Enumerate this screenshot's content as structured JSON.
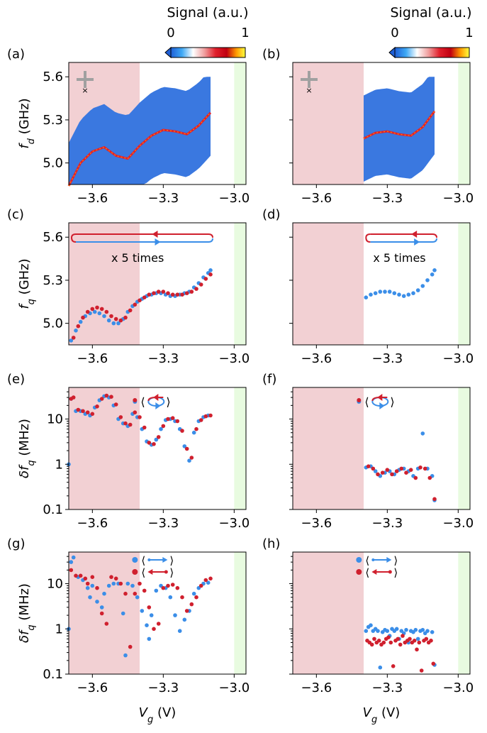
{
  "colorbar": {
    "label": "Signal (a.u.)",
    "tick_min": "0",
    "tick_max": "1",
    "colors": [
      "#1f5fd6",
      "#3fa9f5",
      "#ffffff",
      "#f0a0a0",
      "#e0202c",
      "#c00010",
      "#ff9a00",
      "#ffff40"
    ]
  },
  "colors": {
    "red_shade": "#f2d0d3",
    "green_shade": "#e8fbe0",
    "blue": "#3b8ee8",
    "red": "#d0202e",
    "map_blue": "#3a78e0"
  },
  "annotations": {
    "c_repeat": "x 5 times",
    "d_repeat": "x 5 times"
  },
  "chart_data": [
    {
      "panel": "(a)",
      "type": "heatmap",
      "xlabel": "",
      "ylabel": "f_d (GHz)",
      "ylabel_main": "f",
      "ylabel_sub": "d",
      "ylabel_unit": " (GHz)",
      "xlim": [
        -3.7,
        -2.95
      ],
      "ylim": [
        4.85,
        5.7
      ],
      "xticks": [
        "−3.6",
        "−3.3",
        "−3.0"
      ],
      "yticks": [
        "5.0",
        "5.3",
        "5.6"
      ],
      "shade_red": [
        -3.7,
        -3.4
      ],
      "shade_green": [
        -3.0,
        -2.95
      ],
      "map_x_range": [
        -3.7,
        -3.1
      ],
      "resonance": {
        "x": [
          -3.7,
          -3.65,
          -3.6,
          -3.55,
          -3.5,
          -3.45,
          -3.4,
          -3.35,
          -3.3,
          -3.25,
          -3.2,
          -3.15,
          -3.1
        ],
        "y": [
          4.84,
          5.0,
          5.08,
          5.11,
          5.05,
          5.03,
          5.12,
          5.19,
          5.23,
          5.22,
          5.2,
          5.26,
          5.35
        ]
      }
    },
    {
      "panel": "(b)",
      "type": "heatmap",
      "xlabel": "",
      "ylabel": "",
      "xlim": [
        -3.7,
        -2.95
      ],
      "ylim": [
        4.85,
        5.7
      ],
      "xticks": [
        "−3.6",
        "−3.3",
        "−3.0"
      ],
      "yticks": [],
      "shade_red": [
        -3.7,
        -3.4
      ],
      "shade_green": [
        -3.0,
        -2.95
      ],
      "map_x_range": [
        -3.4,
        -3.1
      ],
      "resonance": {
        "x": [
          -3.4,
          -3.35,
          -3.3,
          -3.25,
          -3.2,
          -3.15,
          -3.1
        ],
        "y": [
          5.17,
          5.21,
          5.22,
          5.2,
          5.19,
          5.25,
          5.36
        ]
      }
    },
    {
      "panel": "(c)",
      "type": "scatter",
      "xlabel": "",
      "ylabel": "f_q (GHz)",
      "ylabel_main": "f",
      "ylabel_sub": "q",
      "ylabel_unit": " (GHz)",
      "xlim": [
        -3.7,
        -2.95
      ],
      "ylim": [
        4.85,
        5.7
      ],
      "xticks": [
        "−3.6",
        "−3.3",
        "−3.0"
      ],
      "yticks": [
        "5.0",
        "5.3",
        "5.6"
      ],
      "shade_red": [
        -3.7,
        -3.4
      ],
      "shade_green": [
        -3.0,
        -2.95
      ],
      "series": [
        {
          "color": "blue",
          "x": [
            -3.69,
            -3.67,
            -3.65,
            -3.63,
            -3.61,
            -3.59,
            -3.57,
            -3.55,
            -3.53,
            -3.51,
            -3.49,
            -3.47,
            -3.45,
            -3.43,
            -3.41,
            -3.39,
            -3.37,
            -3.35,
            -3.33,
            -3.31,
            -3.29,
            -3.27,
            -3.25,
            -3.23,
            -3.21,
            -3.19,
            -3.17,
            -3.15,
            -3.13,
            -3.11,
            -3.1
          ],
          "y": [
            4.88,
            4.95,
            5.01,
            5.05,
            5.07,
            5.08,
            5.07,
            5.05,
            5.02,
            5.0,
            5.0,
            5.03,
            5.08,
            5.12,
            5.15,
            5.17,
            5.19,
            5.2,
            5.21,
            5.21,
            5.2,
            5.19,
            5.19,
            5.2,
            5.21,
            5.22,
            5.25,
            5.28,
            5.32,
            5.35,
            5.37
          ]
        },
        {
          "color": "red",
          "x": [
            -3.68,
            -3.66,
            -3.64,
            -3.62,
            -3.6,
            -3.58,
            -3.56,
            -3.54,
            -3.52,
            -3.5,
            -3.48,
            -3.46,
            -3.44,
            -3.42,
            -3.4,
            -3.38,
            -3.36,
            -3.34,
            -3.32,
            -3.3,
            -3.28,
            -3.26,
            -3.24,
            -3.22,
            -3.2,
            -3.18,
            -3.16,
            -3.14,
            -3.12,
            -3.1
          ],
          "y": [
            4.9,
            4.98,
            5.04,
            5.08,
            5.1,
            5.11,
            5.1,
            5.08,
            5.05,
            5.03,
            5.02,
            5.04,
            5.09,
            5.13,
            5.16,
            5.18,
            5.2,
            5.21,
            5.22,
            5.22,
            5.21,
            5.2,
            5.2,
            5.2,
            5.21,
            5.22,
            5.24,
            5.27,
            5.31,
            5.34
          ]
        }
      ]
    },
    {
      "panel": "(d)",
      "type": "scatter",
      "xlabel": "",
      "ylabel": "",
      "xlim": [
        -3.7,
        -2.95
      ],
      "ylim": [
        4.85,
        5.7
      ],
      "xticks": [
        "−3.6",
        "−3.3",
        "−3.0"
      ],
      "yticks": [],
      "shade_red": [
        -3.7,
        -3.4
      ],
      "shade_green": [
        -3.0,
        -2.95
      ],
      "series": [
        {
          "color": "blue",
          "x": [
            -3.39,
            -3.37,
            -3.35,
            -3.33,
            -3.31,
            -3.29,
            -3.27,
            -3.25,
            -3.23,
            -3.21,
            -3.19,
            -3.17,
            -3.15,
            -3.13,
            -3.11,
            -3.1
          ],
          "y": [
            5.18,
            5.2,
            5.21,
            5.22,
            5.22,
            5.22,
            5.21,
            5.2,
            5.19,
            5.2,
            5.21,
            5.23,
            5.26,
            5.3,
            5.34,
            5.37
          ]
        }
      ]
    },
    {
      "panel": "(e)",
      "type": "scatter",
      "xlabel": "",
      "ylabel": "δf_q (MHz)",
      "ylabel_main": "δf",
      "ylabel_sub": "q",
      "ylabel_unit": " (MHz)",
      "xlim": [
        -3.7,
        -2.95
      ],
      "ylim": [
        0.1,
        50
      ],
      "log": true,
      "xticks": [
        "−3.6",
        "−3.3",
        "−3.0"
      ],
      "yticks": [
        "0.1",
        "1",
        "10"
      ],
      "shade_red": [
        -3.7,
        -3.4
      ],
      "shade_green": [
        -3.0,
        -2.95
      ],
      "series": [
        {
          "color": "blue",
          "x": [
            -3.7,
            -3.69,
            -3.67,
            -3.65,
            -3.63,
            -3.61,
            -3.59,
            -3.57,
            -3.55,
            -3.53,
            -3.51,
            -3.49,
            -3.47,
            -3.45,
            -3.43,
            -3.41,
            -3.39,
            -3.37,
            -3.35,
            -3.33,
            -3.31,
            -3.29,
            -3.27,
            -3.25,
            -3.23,
            -3.21,
            -3.19,
            -3.17,
            -3.15,
            -3.13,
            -3.11
          ],
          "y": [
            1.0,
            28,
            15,
            15,
            13,
            12,
            18,
            26,
            32,
            30,
            20,
            10,
            8,
            7,
            13,
            11,
            6,
            3.2,
            2.7,
            3.5,
            6,
            9.5,
            10,
            9,
            6,
            2.5,
            1.2,
            5,
            9,
            11,
            12
          ]
        },
        {
          "color": "red",
          "x": [
            -3.69,
            -3.68,
            -3.66,
            -3.64,
            -3.62,
            -3.6,
            -3.58,
            -3.56,
            -3.54,
            -3.52,
            -3.5,
            -3.48,
            -3.46,
            -3.44,
            -3.42,
            -3.4,
            -3.38,
            -3.36,
            -3.34,
            -3.32,
            -3.3,
            -3.28,
            -3.26,
            -3.24,
            -3.22,
            -3.2,
            -3.18,
            -3.16,
            -3.14,
            -3.12,
            -3.1
          ],
          "y": [
            28,
            30,
            16,
            15,
            14,
            13,
            19,
            28,
            33,
            31,
            21,
            11,
            8,
            7.5,
            14,
            11,
            6.5,
            3.0,
            2.8,
            4,
            7,
            10,
            10.5,
            9,
            5.5,
            2.2,
            1.4,
            6,
            9.5,
            11.5,
            12
          ]
        }
      ]
    },
    {
      "panel": "(f)",
      "type": "scatter",
      "xlabel": "",
      "ylabel": "",
      "xlim": [
        -3.7,
        -2.95
      ],
      "ylim": [
        0.1,
        50
      ],
      "log": true,
      "xticks": [
        "−3.6",
        "−3.3",
        "−3.0"
      ],
      "yticks": [],
      "shade_red": [
        -3.7,
        -3.4
      ],
      "shade_green": [
        -3.0,
        -2.95
      ],
      "series": [
        {
          "color": "blue",
          "x": [
            -3.39,
            -3.37,
            -3.35,
            -3.33,
            -3.31,
            -3.29,
            -3.27,
            -3.25,
            -3.23,
            -3.21,
            -3.19,
            -3.17,
            -3.15,
            -3.13,
            -3.11,
            -3.1
          ],
          "y": [
            0.85,
            0.9,
            0.7,
            0.55,
            0.65,
            0.7,
            0.6,
            0.75,
            0.8,
            0.7,
            0.55,
            0.8,
            4.8,
            0.8,
            0.55,
            0.16
          ]
        },
        {
          "color": "red",
          "x": [
            -3.38,
            -3.36,
            -3.34,
            -3.32,
            -3.3,
            -3.28,
            -3.26,
            -3.24,
            -3.22,
            -3.2,
            -3.18,
            -3.16,
            -3.14,
            -3.12,
            -3.1
          ],
          "y": [
            0.9,
            0.8,
            0.6,
            0.65,
            0.75,
            0.6,
            0.7,
            0.8,
            0.65,
            0.75,
            0.5,
            0.85,
            0.8,
            0.5,
            0.17
          ]
        }
      ]
    },
    {
      "panel": "(g)",
      "type": "scatter",
      "xlabel": "V_g (V)",
      "xlabel_main": "V",
      "xlabel_sub": "g",
      "xlabel_unit": " (V)",
      "ylabel": "δf_q (MHz)",
      "ylabel_main": "δf",
      "ylabel_sub": "q",
      "ylabel_unit": " (MHz)",
      "xlim": [
        -3.7,
        -2.95
      ],
      "ylim": [
        0.1,
        50
      ],
      "log": true,
      "xticks": [
        "−3.6",
        "−3.3",
        "−3.0"
      ],
      "yticks": [
        "0.1",
        "1",
        "10"
      ],
      "shade_red": [
        -3.7,
        -3.4
      ],
      "shade_green": [
        -3.0,
        -2.95
      ],
      "series": [
        {
          "color": "blue",
          "x": [
            -3.7,
            -3.69,
            -3.68,
            -3.66,
            -3.64,
            -3.62,
            -3.61,
            -3.6,
            -3.58,
            -3.56,
            -3.55,
            -3.53,
            -3.51,
            -3.49,
            -3.47,
            -3.46,
            -3.45,
            -3.43,
            -3.41,
            -3.39,
            -3.37,
            -3.36,
            -3.35,
            -3.33,
            -3.31,
            -3.29,
            -3.27,
            -3.25,
            -3.23,
            -3.21,
            -3.19,
            -3.17,
            -3.15,
            -3.13,
            -3.11
          ],
          "y": [
            1.0,
            30,
            38,
            14,
            12,
            8,
            5,
            9,
            4,
            3,
            6,
            9,
            10,
            10,
            2.2,
            0.26,
            10,
            9,
            5,
            2.5,
            1.2,
            0.6,
            2,
            7,
            9,
            8,
            5,
            2,
            0.9,
            1.6,
            2.5,
            6,
            8,
            10,
            10.5
          ]
        },
        {
          "color": "red",
          "x": [
            -3.69,
            -3.67,
            -3.65,
            -3.63,
            -3.62,
            -3.6,
            -3.58,
            -3.56,
            -3.54,
            -3.52,
            -3.5,
            -3.48,
            -3.46,
            -3.44,
            -3.42,
            -3.4,
            -3.38,
            -3.36,
            -3.34,
            -3.32,
            -3.3,
            -3.28,
            -3.26,
            -3.24,
            -3.22,
            -3.2,
            -3.18,
            -3.16,
            -3.14,
            -3.12,
            -3.1
          ],
          "y": [
            20,
            15,
            15,
            13,
            10,
            14,
            8,
            2.2,
            1.3,
            14,
            13,
            10,
            6,
            0.4,
            6,
            10,
            7,
            3,
            1.0,
            1.3,
            8,
            9,
            9.5,
            8,
            5,
            2.5,
            3.5,
            5,
            9,
            12,
            13
          ]
        }
      ]
    },
    {
      "panel": "(h)",
      "type": "scatter",
      "xlabel": "V_g (V)",
      "xlabel_main": "V",
      "xlabel_sub": "g",
      "xlabel_unit": " (V)",
      "ylabel": "",
      "xlim": [
        -3.7,
        -2.95
      ],
      "ylim": [
        0.1,
        50
      ],
      "log": true,
      "xticks": [
        "−3.6",
        "−3.3",
        "−3.0"
      ],
      "yticks": [],
      "shade_red": [
        -3.7,
        -3.4
      ],
      "shade_green": [
        -3.0,
        -2.95
      ],
      "series": [
        {
          "color": "blue",
          "x": [
            -3.39,
            -3.38,
            -3.37,
            -3.36,
            -3.35,
            -3.34,
            -3.33,
            -3.32,
            -3.31,
            -3.3,
            -3.29,
            -3.28,
            -3.27,
            -3.26,
            -3.25,
            -3.24,
            -3.23,
            -3.22,
            -3.21,
            -3.2,
            -3.19,
            -3.18,
            -3.17,
            -3.16,
            -3.15,
            -3.14,
            -3.13,
            -3.11,
            -3.1
          ],
          "y": [
            0.9,
            1.1,
            1.2,
            0.9,
            1.0,
            0.9,
            0.14,
            0.85,
            0.95,
            0.9,
            0.7,
            1.0,
            0.9,
            1.0,
            0.6,
            0.9,
            0.8,
            0.95,
            0.5,
            0.9,
            0.85,
            0.95,
            0.6,
            0.9,
            0.95,
            0.8,
            0.9,
            0.85,
            0.16
          ]
        },
        {
          "color": "red",
          "x": [
            -3.385,
            -3.375,
            -3.365,
            -3.355,
            -3.345,
            -3.335,
            -3.325,
            -3.315,
            -3.305,
            -3.295,
            -3.285,
            -3.275,
            -3.265,
            -3.255,
            -3.245,
            -3.235,
            -3.225,
            -3.215,
            -3.205,
            -3.195,
            -3.185,
            -3.175,
            -3.165,
            -3.155,
            -3.145,
            -3.135,
            -3.125,
            -3.115,
            -3.105
          ],
          "y": [
            0.55,
            0.5,
            0.45,
            0.6,
            0.5,
            0.55,
            0.45,
            0.5,
            0.6,
            0.65,
            0.5,
            0.15,
            0.55,
            0.6,
            0.45,
            0.7,
            0.5,
            0.55,
            0.6,
            0.5,
            0.55,
            0.35,
            0.5,
            0.12,
            0.55,
            0.6,
            0.5,
            0.55,
            0.17
          ]
        }
      ]
    }
  ]
}
